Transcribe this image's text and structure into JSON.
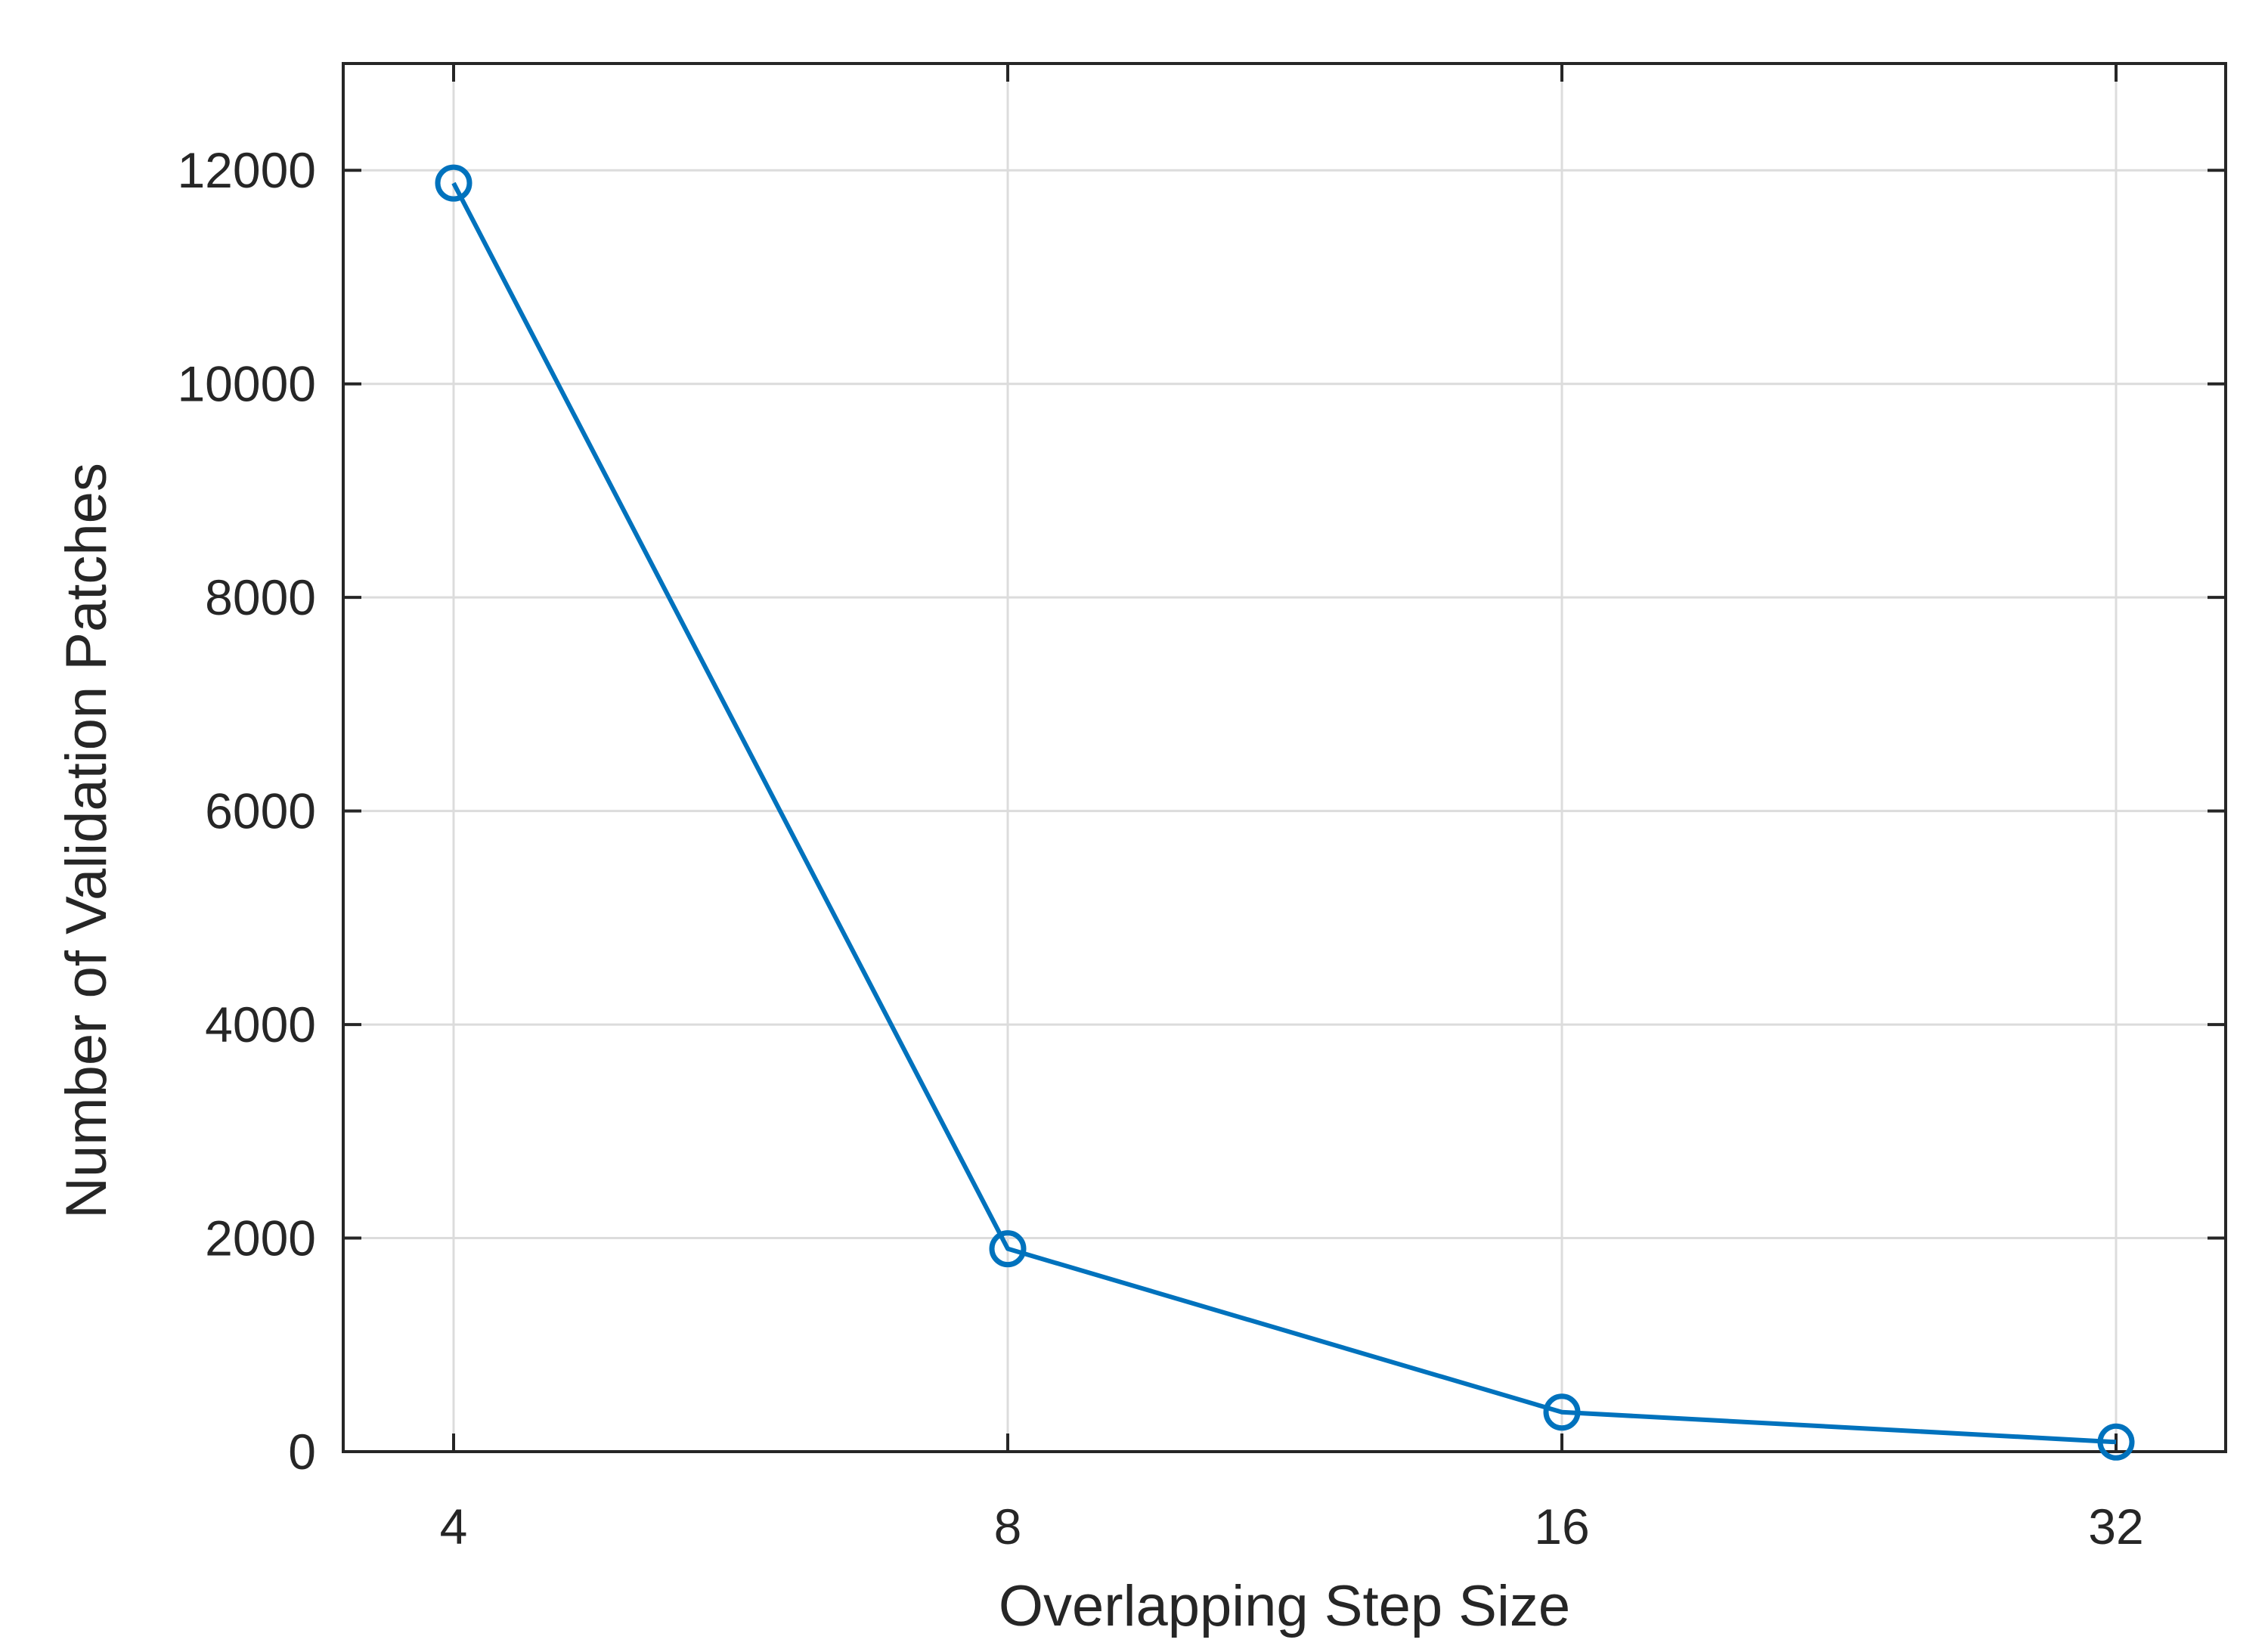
{
  "chart_data": {
    "type": "line",
    "title": "",
    "xlabel": "Overlapping Step Size",
    "ylabel": "Number of Validation Patches",
    "categories": [
      "4",
      "8",
      "16",
      "32"
    ],
    "x_scale": "log2",
    "ylim": [
      0,
      13000
    ],
    "yticks": [
      0,
      2000,
      4000,
      6000,
      8000,
      10000,
      12000
    ],
    "grid": true,
    "legend": "none",
    "series": [
      {
        "values": [
          11880,
          1900,
          370,
          90
        ],
        "color": "#0072bd",
        "marker": "circle"
      }
    ]
  }
}
